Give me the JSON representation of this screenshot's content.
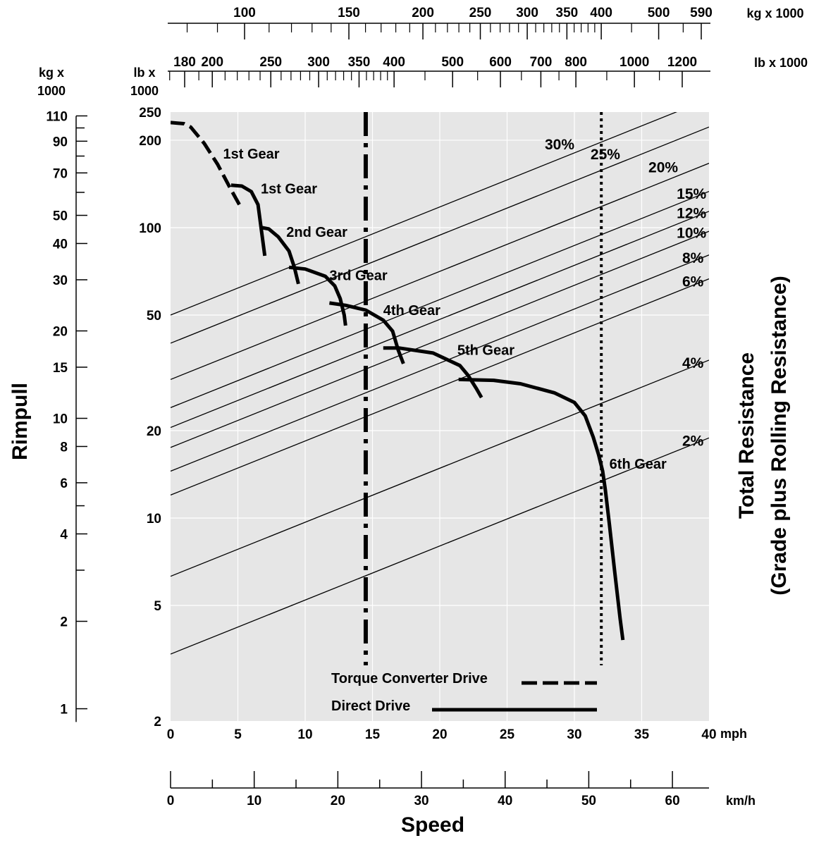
{
  "chart_data": {
    "type": "line",
    "title": "",
    "xlabel": "Speed",
    "ylabel": "Rimpull",
    "ylabel_right_line1": "Total Resistance",
    "ylabel_right_line2": "(Grade plus Rolling Resistance)",
    "x_units": {
      "mph": "mph",
      "kmh": "km/h"
    },
    "xlim_mph": [
      0,
      40
    ],
    "ylim_lb_x1000": [
      2,
      250
    ],
    "y_scale": "log",
    "grid": true,
    "x_ticks_mph": [
      0,
      5,
      10,
      15,
      20,
      25,
      30,
      35,
      40
    ],
    "x_tick_labels_mph": [
      "0",
      "5",
      "10",
      "15",
      "20",
      "25",
      "30",
      "35",
      "40"
    ],
    "x_ticks_kmh": [
      0,
      10,
      20,
      30,
      40,
      50,
      60
    ],
    "x_tick_labels_kmh": [
      "0",
      "10",
      "20",
      "30",
      "40",
      "50",
      "60"
    ],
    "y_ticks_lb": [
      2,
      5,
      10,
      20,
      50,
      100,
      200,
      250
    ],
    "y_tick_labels_lb": [
      "2",
      "5",
      "10",
      "20",
      "50",
      "100",
      "200",
      "250"
    ],
    "y_ticks_kg": [
      1,
      2,
      4,
      6,
      8,
      10,
      15,
      20,
      30,
      40,
      50,
      70,
      90,
      110
    ],
    "y_tick_labels_kg": [
      "1",
      "2",
      "4",
      "6",
      "8",
      "10",
      "15",
      "20",
      "30",
      "40",
      "50",
      "70",
      "90",
      "110"
    ],
    "y_minor_ticks_kg": [
      3,
      5,
      60,
      80,
      100
    ],
    "left_axis_unit": {
      "line1": "kg x",
      "line2": "1000"
    },
    "lb_axis_unit": {
      "line1": "lb x",
      "line2": "1000"
    },
    "weight_scale_kg": {
      "unit": "kg x 1000",
      "labels": [
        "100",
        "150",
        "200",
        "250",
        "300",
        "350",
        "400",
        "500",
        "590"
      ],
      "label_values": [
        100,
        150,
        200,
        250,
        300,
        350,
        400,
        500,
        590
      ]
    },
    "weight_scale_lb": {
      "unit": "lb x 1000",
      "labels": [
        "180",
        "200",
        "250",
        "300",
        "350",
        "400",
        "500",
        "600",
        "700",
        "800",
        "1000",
        "1200"
      ],
      "label_values": [
        180,
        200,
        250,
        300,
        350,
        400,
        500,
        600,
        700,
        800,
        1000,
        1200
      ]
    },
    "series": [
      {
        "name": "1st Gear",
        "drive": "torque_converter",
        "points": [
          [
            0,
            230
          ],
          [
            1.0,
            228
          ],
          [
            1.5,
            222
          ],
          [
            2.5,
            195
          ],
          [
            3.5,
            165
          ],
          [
            4.5,
            135
          ],
          [
            5.2,
            118
          ]
        ]
      },
      {
        "name": "1st Gear",
        "drive": "direct",
        "points": [
          [
            4.5,
            140
          ],
          [
            5.3,
            139
          ],
          [
            6.0,
            133
          ],
          [
            6.5,
            120
          ],
          [
            7.0,
            80
          ]
        ]
      },
      {
        "name": "2nd Gear",
        "drive": "direct",
        "points": [
          [
            6.8,
            100
          ],
          [
            7.3,
            99
          ],
          [
            8.0,
            93
          ],
          [
            8.8,
            83
          ],
          [
            9.2,
            73
          ],
          [
            9.5,
            64
          ]
        ]
      },
      {
        "name": "3rd Gear",
        "drive": "direct",
        "points": [
          [
            8.8,
            73
          ],
          [
            10.0,
            72
          ],
          [
            11.5,
            68
          ],
          [
            12.2,
            63
          ],
          [
            12.6,
            57
          ],
          [
            12.9,
            50
          ],
          [
            13.0,
            46
          ]
        ]
      },
      {
        "name": "4th Gear",
        "drive": "direct",
        "points": [
          [
            11.8,
            55
          ],
          [
            13.0,
            54
          ],
          [
            14.5,
            52
          ],
          [
            15.8,
            48
          ],
          [
            16.5,
            44
          ],
          [
            16.9,
            38
          ],
          [
            17.3,
            34
          ]
        ]
      },
      {
        "name": "5th Gear",
        "drive": "direct",
        "points": [
          [
            15.8,
            38.5
          ],
          [
            17.0,
            38.5
          ],
          [
            19.5,
            37
          ],
          [
            21.5,
            33.5
          ],
          [
            22.1,
            31
          ],
          [
            22.7,
            28
          ],
          [
            23.1,
            26
          ]
        ]
      },
      {
        "name": "6th Gear",
        "drive": "direct",
        "points": [
          [
            21.4,
            30
          ],
          [
            24,
            29.8
          ],
          [
            26,
            29
          ],
          [
            28.5,
            27
          ],
          [
            30.0,
            25
          ],
          [
            30.8,
            22.5
          ],
          [
            31.4,
            19
          ],
          [
            31.8,
            16.5
          ],
          [
            32.1,
            14.5
          ],
          [
            32.3,
            12.5
          ],
          [
            32.6,
            9.5
          ],
          [
            33.0,
            6.5
          ],
          [
            33.4,
            4.5
          ],
          [
            33.6,
            3.8
          ]
        ]
      }
    ],
    "vertical_markers": [
      {
        "x_mph": 14.5,
        "style": "dash-dot"
      },
      {
        "x_mph": 32.0,
        "style": "dotted"
      }
    ],
    "grade_lines": {
      "labels": [
        "30%",
        "25%",
        "20%",
        "15%",
        "12%",
        "10%",
        "8%",
        "6%",
        "4%",
        "2%"
      ],
      "left_y_lb": [
        50,
        40,
        30,
        24,
        20.5,
        17.5,
        14.5,
        12,
        6.3,
        3.4
      ]
    },
    "gear_labels": [
      "1st Gear",
      "1st Gear",
      "2nd Gear",
      "3rd Gear",
      "4th Gear",
      "5th Gear",
      "6th Gear"
    ],
    "legend": [
      {
        "label": "Torque Converter Drive",
        "style": "dashed"
      },
      {
        "label": "Direct Drive",
        "style": "solid"
      }
    ],
    "legend_position": "bottom-center",
    "colors": {
      "plot_bg": "#e6e6e6",
      "grid": "#ffffff",
      "ink": "#000000"
    }
  }
}
